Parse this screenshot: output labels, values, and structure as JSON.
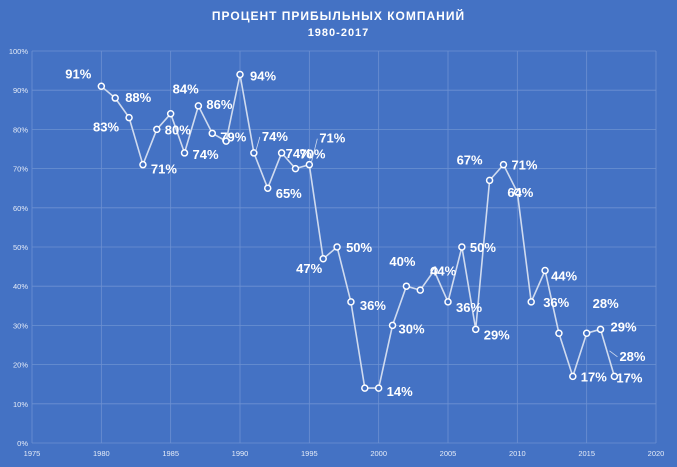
{
  "chart_data": {
    "type": "line",
    "title": "ПРОЦЕНТ ПРИБЫЛЬНЫХ КОМПАНИЙ",
    "subtitle": "1980-2017",
    "xlabel": "",
    "ylabel": "",
    "xlim": [
      1975,
      2020
    ],
    "ylim": [
      0,
      100
    ],
    "x_ticks": [
      "1975",
      "1980",
      "1985",
      "1990",
      "1995",
      "2000",
      "2005",
      "2010",
      "2015",
      "2020"
    ],
    "y_ticks": [
      "0%",
      "10%",
      "20%",
      "30%",
      "40%",
      "50%",
      "60%",
      "70%",
      "80%",
      "90%",
      "100%"
    ],
    "grid": true,
    "legend": "none",
    "series": [
      {
        "x": [
          1980,
          1981,
          1982,
          1983,
          1984,
          1985,
          1986,
          1987,
          1988,
          1989,
          1990,
          1991,
          1992,
          1993,
          1994,
          1995,
          1996,
          1997,
          1998,
          1999,
          2000,
          2001,
          2002,
          2003,
          2004,
          2005,
          2006,
          2007,
          2008,
          2009,
          2010,
          2011,
          2012,
          2013,
          2014,
          2015,
          2016,
          2017
        ],
        "values": [
          91,
          88,
          83,
          71,
          80,
          84,
          74,
          86,
          79,
          77,
          94,
          74,
          65,
          74,
          70,
          71,
          47,
          50,
          36,
          14,
          14,
          30,
          40,
          39,
          44,
          36,
          50,
          29,
          67,
          71,
          64,
          36,
          44,
          28,
          17,
          28,
          29,
          17
        ]
      }
    ],
    "data_labels": [
      {
        "text": "91%",
        "x": 1980
      },
      {
        "text": "88%",
        "x": 1981
      },
      {
        "text": "83%",
        "x": 1982
      },
      {
        "text": "71%",
        "x": 1983
      },
      {
        "text": "80%",
        "x": 1984
      },
      {
        "text": "84%",
        "x": 1985
      },
      {
        "text": "74%",
        "x": 1986
      },
      {
        "text": "86%",
        "x": 1987
      },
      {
        "text": "79%",
        "x": 1988
      },
      {
        "text": "94%",
        "x": 1990
      },
      {
        "text": "74%",
        "x": 1991
      },
      {
        "text": "65%",
        "x": 1992
      },
      {
        "text": "74%",
        "x": 1993
      },
      {
        "text": "70%",
        "x": 1994
      },
      {
        "text": "71%",
        "x": 1995
      },
      {
        "text": "47%",
        "x": 1996
      },
      {
        "text": "50%",
        "x": 1997
      },
      {
        "text": "36%",
        "x": 1998
      },
      {
        "text": "14%",
        "x": 2000
      },
      {
        "text": "30%",
        "x": 2001
      },
      {
        "text": "40%",
        "x": 2002
      },
      {
        "text": "44%",
        "x": 2004
      },
      {
        "text": "36%",
        "x": 2005
      },
      {
        "text": "50%",
        "x": 2006
      },
      {
        "text": "29%",
        "x": 2007
      },
      {
        "text": "67%",
        "x": 2008
      },
      {
        "text": "71%",
        "x": 2009
      },
      {
        "text": "64%",
        "x": 2010
      },
      {
        "text": "36%",
        "x": 2011
      },
      {
        "text": "44%",
        "x": 2012
      },
      {
        "text": "28%",
        "x": 2015
      },
      {
        "text": "17%",
        "x": 2014
      },
      {
        "text": "29%",
        "x": 2016
      },
      {
        "text": "28%",
        "x": 2016.5
      },
      {
        "text": "17%",
        "x": 2017
      }
    ],
    "colors": {
      "background": "#4472c4",
      "line": "#d0dbef",
      "marker_fill": "#4472c4",
      "marker_stroke": "#ffffff",
      "grid": "#6d91d2",
      "text": "#ffffff",
      "tick_text": "#e6ecf7"
    }
  }
}
